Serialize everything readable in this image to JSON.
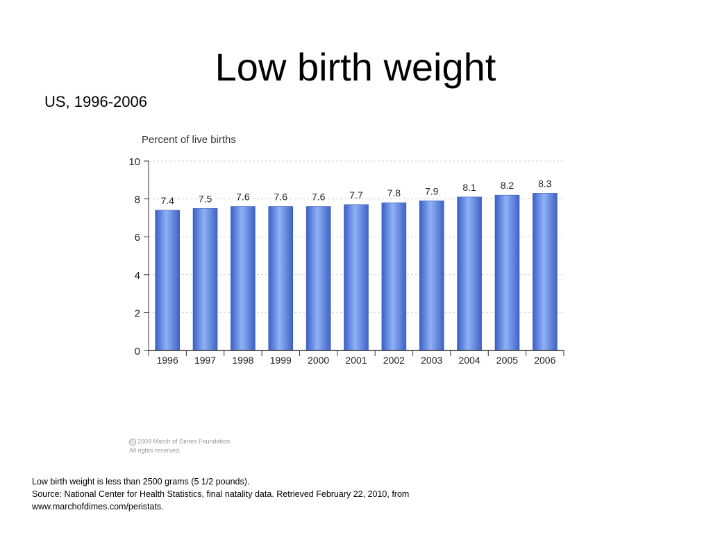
{
  "slide": {
    "title": "Low birth weight",
    "subtitle": "US, 1996-2006"
  },
  "chart_data": {
    "type": "bar",
    "ylabel": "Percent of live births",
    "xlabel": "",
    "categories": [
      "1996",
      "1997",
      "1998",
      "1999",
      "2000",
      "2001",
      "2002",
      "2003",
      "2004",
      "2005",
      "2006"
    ],
    "values": [
      7.4,
      7.5,
      7.6,
      7.6,
      7.6,
      7.7,
      7.8,
      7.9,
      8.1,
      8.2,
      8.3
    ],
    "data_labels": [
      "7.4",
      "7.5",
      "7.6",
      "7.6",
      "7.6",
      "7.7",
      "7.8",
      "7.9",
      "8.1",
      "8.2",
      "8.3"
    ],
    "ylim": [
      0,
      10
    ],
    "yticks": [
      0,
      2,
      4,
      6,
      8,
      10
    ],
    "grid": true,
    "bar_color": "#5b84e0"
  },
  "copyright": {
    "line1": "2009 March of Dimes Foundation.",
    "line2": "All rights reserved."
  },
  "footnotes": [
    "Low birth weight is less than 2500 grams (5 1/2 pounds).",
    "Source: National Center for Health Statistics, final natality data. Retrieved February 22, 2010, from www.marchofdimes.com/peristats."
  ]
}
